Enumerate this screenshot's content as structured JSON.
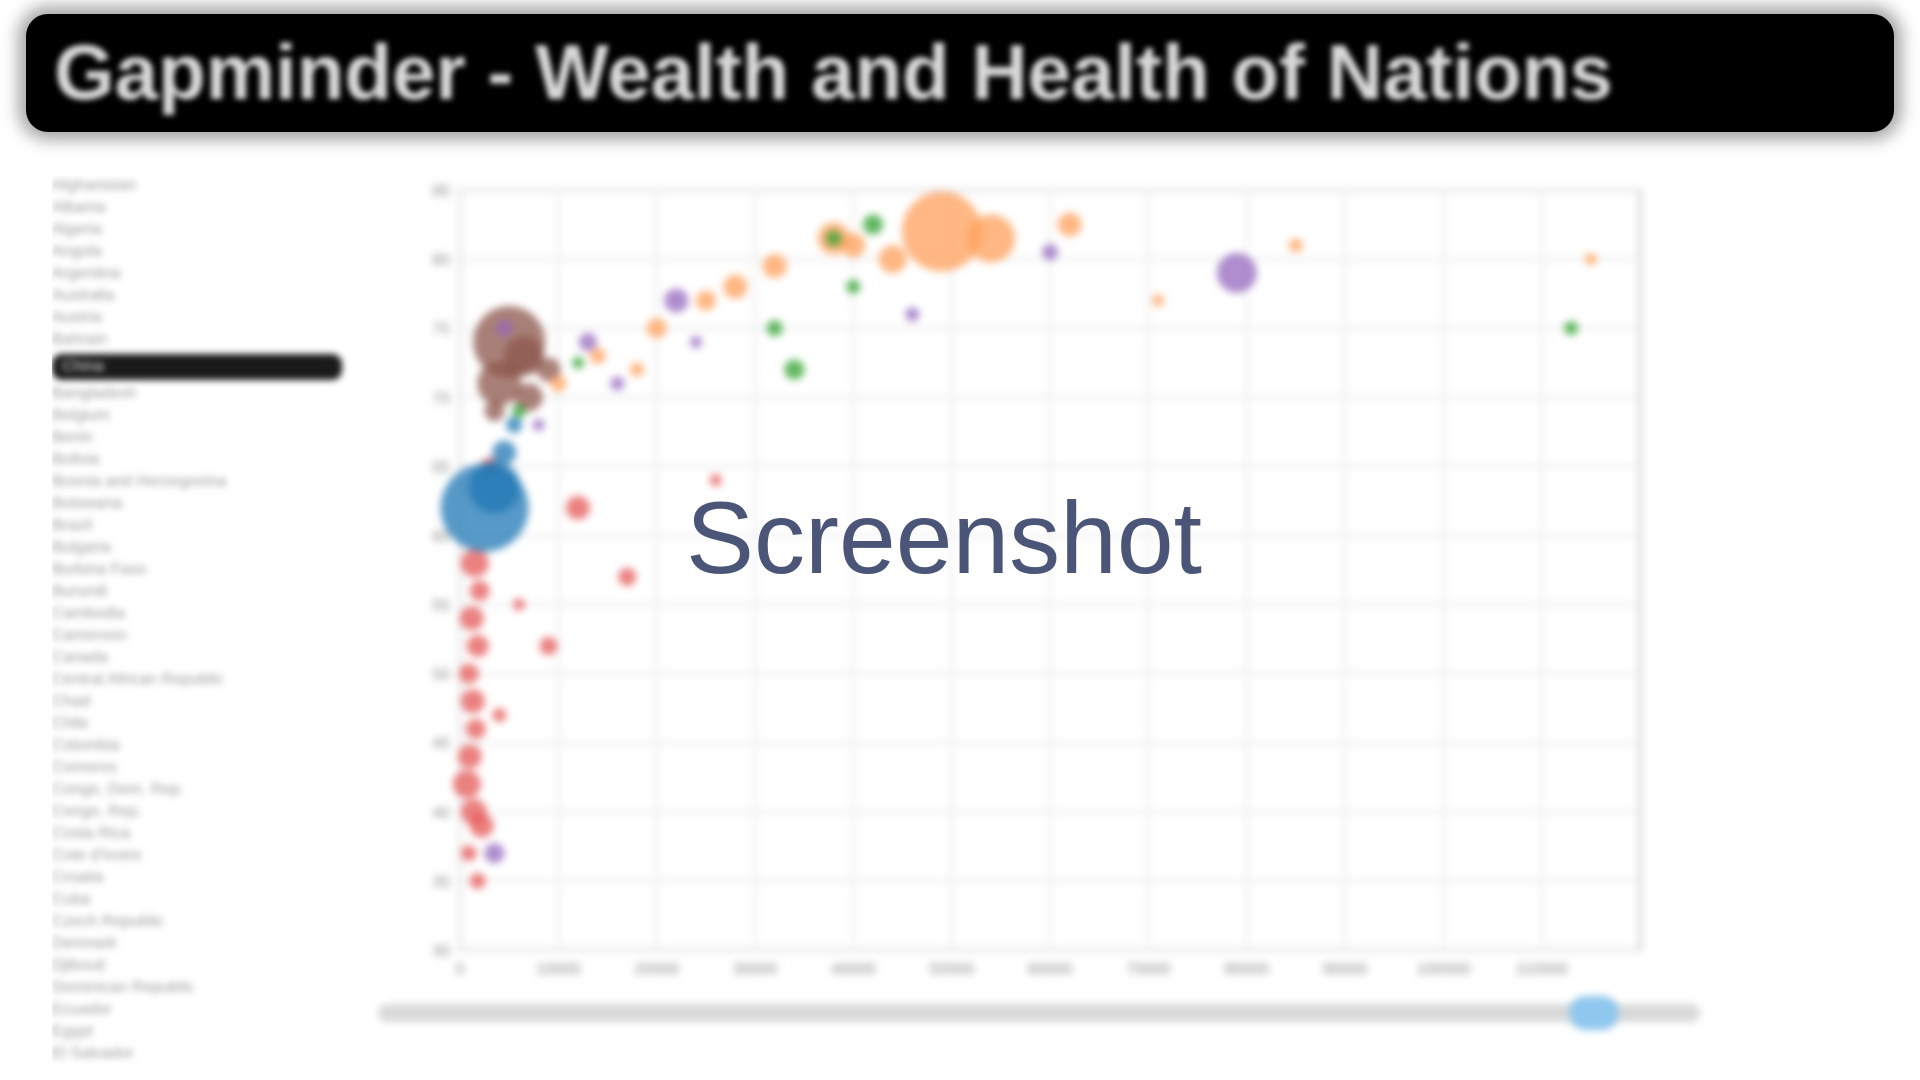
{
  "app": {
    "title": "Gapminder - Wealth and Health of Nations"
  },
  "overlay": {
    "label": "Screenshot"
  },
  "colors": {
    "africa": "#e45756",
    "asia": "#1f77b4",
    "europe": "#ff9f5a",
    "americas": "#9467bd",
    "oceania": "#2ca02c",
    "other": "#8c564b"
  },
  "sidebar": {
    "countries": [
      "Afghanistan",
      "Albania",
      "Algeria",
      "Angola",
      "Argentina",
      "Australia",
      "Austria",
      "Bahrain",
      "China",
      "Bangladesh",
      "Belgium",
      "Benin",
      "Bolivia",
      "Bosnia and Herzegovina",
      "Botswana",
      "Brazil",
      "Bulgaria",
      "Burkina Faso",
      "Burundi",
      "Cambodia",
      "Cameroon",
      "Canada",
      "Central African Republic",
      "Chad",
      "Chile",
      "Colombia",
      "Comoros",
      "Congo, Dem. Rep.",
      "Congo, Rep.",
      "Costa Rica",
      "Cote d'Ivoire",
      "Croatia",
      "Cuba",
      "Czech Republic",
      "Denmark",
      "Djibouti",
      "Dominican Republic",
      "Ecuador",
      "Egypt",
      "El Salvador"
    ],
    "selected_index": 8
  },
  "timeline": {
    "position": 0.92
  },
  "chart_data": {
    "type": "scatter",
    "title": "",
    "xlabel": "",
    "ylabel": "",
    "xlim": [
      0,
      120000
    ],
    "ylim": [
      30,
      85
    ],
    "x_ticks": [
      0,
      10000,
      20000,
      30000,
      40000,
      50000,
      60000,
      70000,
      80000,
      90000,
      100000,
      110000
    ],
    "y_ticks": [
      30,
      35,
      40,
      45,
      50,
      55,
      60,
      65,
      70,
      75,
      80,
      85
    ],
    "grid": true,
    "series": [
      {
        "color": "#e45756",
        "points": [
          {
            "x": 1500,
            "y": 58,
            "size": 14
          },
          {
            "x": 2000,
            "y": 56,
            "size": 10
          },
          {
            "x": 1200,
            "y": 54,
            "size": 12
          },
          {
            "x": 1800,
            "y": 52,
            "size": 11
          },
          {
            "x": 900,
            "y": 50,
            "size": 10
          },
          {
            "x": 1300,
            "y": 48,
            "size": 12
          },
          {
            "x": 1600,
            "y": 46,
            "size": 10
          },
          {
            "x": 1000,
            "y": 44,
            "size": 12
          },
          {
            "x": 700,
            "y": 42,
            "size": 14
          },
          {
            "x": 1400,
            "y": 40,
            "size": 13
          },
          {
            "x": 2200,
            "y": 39,
            "size": 12
          },
          {
            "x": 900,
            "y": 37,
            "size": 8
          },
          {
            "x": 1800,
            "y": 35,
            "size": 8
          },
          {
            "x": 9000,
            "y": 52,
            "size": 9
          },
          {
            "x": 12000,
            "y": 62,
            "size": 12
          },
          {
            "x": 17000,
            "y": 57,
            "size": 9
          },
          {
            "x": 6000,
            "y": 55,
            "size": 6
          },
          {
            "x": 3000,
            "y": 65,
            "size": 9
          },
          {
            "x": 26000,
            "y": 64,
            "size": 6
          },
          {
            "x": 4000,
            "y": 47,
            "size": 7
          }
        ]
      },
      {
        "color": "#1f77b4",
        "points": [
          {
            "x": 2500,
            "y": 62,
            "size": 44
          },
          {
            "x": 3500,
            "y": 63.5,
            "size": 26
          },
          {
            "x": 4500,
            "y": 66,
            "size": 12
          },
          {
            "x": 5500,
            "y": 68,
            "size": 8
          }
        ]
      },
      {
        "color": "#8c564b",
        "points": [
          {
            "x": 5000,
            "y": 74,
            "size": 36
          },
          {
            "x": 6500,
            "y": 73,
            "size": 20
          },
          {
            "x": 4000,
            "y": 71,
            "size": 22
          },
          {
            "x": 7000,
            "y": 70,
            "size": 14
          },
          {
            "x": 9000,
            "y": 72,
            "size": 12
          },
          {
            "x": 3500,
            "y": 69,
            "size": 10
          }
        ]
      },
      {
        "color": "#ff9f5a",
        "points": [
          {
            "x": 49000,
            "y": 82,
            "size": 40
          },
          {
            "x": 54000,
            "y": 81.5,
            "size": 24
          },
          {
            "x": 44000,
            "y": 80,
            "size": 14
          },
          {
            "x": 62000,
            "y": 82.5,
            "size": 12
          },
          {
            "x": 40000,
            "y": 81,
            "size": 12
          },
          {
            "x": 32000,
            "y": 79.5,
            "size": 12
          },
          {
            "x": 38000,
            "y": 81.5,
            "size": 16
          },
          {
            "x": 28000,
            "y": 78,
            "size": 12
          },
          {
            "x": 25000,
            "y": 77,
            "size": 10
          },
          {
            "x": 20000,
            "y": 75,
            "size": 10
          },
          {
            "x": 14000,
            "y": 73,
            "size": 8
          },
          {
            "x": 10000,
            "y": 71,
            "size": 8
          },
          {
            "x": 85000,
            "y": 81,
            "size": 7
          },
          {
            "x": 115000,
            "y": 80,
            "size": 6
          },
          {
            "x": 71000,
            "y": 77,
            "size": 6
          },
          {
            "x": 18000,
            "y": 72,
            "size": 7
          }
        ]
      },
      {
        "color": "#9467bd",
        "points": [
          {
            "x": 79000,
            "y": 79,
            "size": 20
          },
          {
            "x": 22000,
            "y": 77,
            "size": 12
          },
          {
            "x": 13000,
            "y": 74,
            "size": 9
          },
          {
            "x": 16000,
            "y": 71,
            "size": 7
          },
          {
            "x": 46000,
            "y": 76,
            "size": 7
          },
          {
            "x": 60000,
            "y": 80.5,
            "size": 8
          },
          {
            "x": 8000,
            "y": 68,
            "size": 6
          },
          {
            "x": 24000,
            "y": 74,
            "size": 6
          },
          {
            "x": 3500,
            "y": 37,
            "size": 10
          },
          {
            "x": 4500,
            "y": 75,
            "size": 8
          }
        ]
      },
      {
        "color": "#2ca02c",
        "points": [
          {
            "x": 42000,
            "y": 82.5,
            "size": 10
          },
          {
            "x": 38000,
            "y": 81.5,
            "size": 8
          },
          {
            "x": 34000,
            "y": 72,
            "size": 10
          },
          {
            "x": 32000,
            "y": 75,
            "size": 8
          },
          {
            "x": 40000,
            "y": 78,
            "size": 7
          },
          {
            "x": 113000,
            "y": 75,
            "size": 7
          },
          {
            "x": 12000,
            "y": 72.5,
            "size": 6
          },
          {
            "x": 6000,
            "y": 69,
            "size": 7
          }
        ]
      }
    ]
  }
}
